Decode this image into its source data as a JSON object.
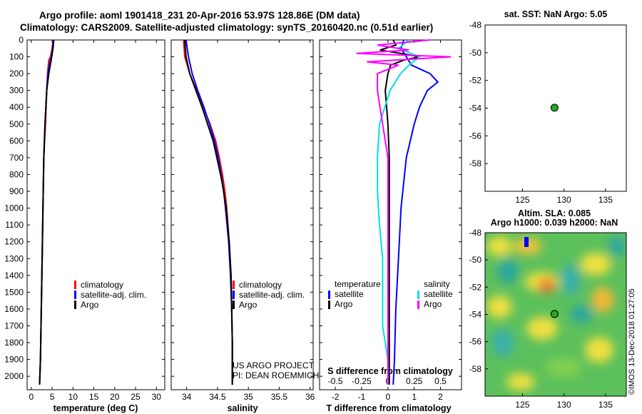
{
  "header": {
    "line1": "Argo profile: aoml 1901418_231 20-Apr-2016 53.97S 128.86E (DM data)",
    "line2": "Climatology: CARS2009. Satellite-adjusted climatology: synTS_20160420.nc (0.51d earlier)"
  },
  "colors": {
    "climatology": "#ff0000",
    "satellite": "#0000ff",
    "argo": "#000000",
    "sat_salinity": "#00e0e0",
    "argo_salinity": "#ff00ff",
    "marker": "#22aa22"
  },
  "credits": {
    "project": "US ARGO PROJECT",
    "pi": "PI: DEAN ROEMMICH",
    "imos": "©IMOS 13-Dec-2018 01:27:05"
  },
  "chart_data": [
    {
      "type": "line",
      "name": "temperature-profile",
      "xlabel": "temperature (deg C)",
      "ylabel": "",
      "xlim": [
        -1,
        32
      ],
      "ylim": [
        2080,
        0
      ],
      "xticks": [
        "0",
        "5",
        "10",
        "15",
        "20",
        "25",
        "30"
      ],
      "yticks": [
        "0",
        "100",
        "200",
        "300",
        "400",
        "500",
        "600",
        "700",
        "800",
        "900",
        "1000",
        "1100",
        "1200",
        "1300",
        "1400",
        "1500",
        "1600",
        "1700",
        "1800",
        "1900",
        "2000"
      ],
      "legend": [
        "climatology",
        "satellite-adj. clim.",
        "Argo"
      ],
      "series": [
        {
          "name": "climatology",
          "color": "#ff0000",
          "depth": [
            0,
            50,
            100,
            120,
            200,
            300,
            500,
            700,
            1000,
            1300,
            1600,
            1900,
            2050
          ],
          "values": [
            5.2,
            5.0,
            4.6,
            4.2,
            3.9,
            3.7,
            3.4,
            3.0,
            2.8,
            2.6,
            2.4,
            2.2,
            2.0
          ]
        },
        {
          "name": "satellite-adj. clim.",
          "color": "#0000ff",
          "depth": [
            0,
            50,
            100,
            150,
            200,
            300,
            500,
            700,
            1000,
            1300,
            1600,
            1900,
            2050
          ],
          "values": [
            5.3,
            5.1,
            4.8,
            4.3,
            4.0,
            3.7,
            3.3,
            3.0,
            2.8,
            2.6,
            2.4,
            2.2,
            2.0
          ]
        },
        {
          "name": "Argo",
          "color": "#000000",
          "depth": [
            0,
            50,
            100,
            200,
            300,
            500,
            700,
            1000,
            1300,
            1600,
            1900,
            2050
          ],
          "values": [
            5.4,
            5.2,
            4.9,
            4.2,
            3.7,
            3.3,
            3.0,
            2.8,
            2.6,
            2.4,
            2.2,
            2.0
          ]
        }
      ]
    },
    {
      "type": "line",
      "name": "salinity-profile",
      "xlabel": "salinity",
      "ylabel": "",
      "xlim": [
        33.75,
        36.05
      ],
      "ylim": [
        2080,
        0
      ],
      "xticks": [
        "34",
        "34.5",
        "35",
        "35.5",
        "36"
      ],
      "legend": [
        "climatology",
        "satellite-adj. clim.",
        "Argo"
      ],
      "series": [
        {
          "name": "climatology",
          "color": "#ff0000",
          "depth": [
            0,
            100,
            200,
            300,
            400,
            500,
            600,
            700,
            800,
            900,
            1000,
            1200,
            1400,
            1600,
            1800,
            2000,
            2050
          ],
          "values": [
            33.95,
            33.97,
            34.05,
            34.16,
            34.27,
            34.38,
            34.47,
            34.53,
            34.58,
            34.62,
            34.65,
            34.69,
            34.72,
            34.73,
            34.74,
            34.74,
            34.74
          ]
        },
        {
          "name": "satellite-adj. clim.",
          "color": "#0000ff",
          "depth": [
            0,
            50,
            100,
            150,
            200,
            300,
            400,
            500,
            600,
            700,
            800,
            900,
            1000,
            1200,
            1400,
            1600,
            1800,
            2000,
            2050
          ],
          "values": [
            33.99,
            34.01,
            34.03,
            34.06,
            34.09,
            34.18,
            34.28,
            34.37,
            34.45,
            34.51,
            34.56,
            34.6,
            34.63,
            34.68,
            34.71,
            34.73,
            34.74,
            34.74,
            34.74
          ]
        },
        {
          "name": "Argo",
          "color": "#000000",
          "depth": [
            0,
            100,
            150,
            200,
            300,
            400,
            500,
            600,
            700,
            800,
            900,
            1000,
            1200,
            1400,
            1600,
            1800,
            2000,
            2050
          ],
          "values": [
            33.97,
            33.99,
            34.02,
            34.05,
            34.15,
            34.25,
            34.34,
            34.43,
            34.49,
            34.55,
            34.6,
            34.64,
            34.69,
            34.72,
            34.73,
            34.74,
            34.74,
            34.74
          ]
        }
      ]
    },
    {
      "type": "line",
      "name": "difference-profile",
      "xlabel": "T difference from climatology",
      "xlabel_top": "S difference from climatology",
      "xlim": [
        -2.6,
        2.8
      ],
      "ylim": [
        2080,
        0
      ],
      "xticks": [
        "-2",
        "-1",
        "0",
        "1",
        "2"
      ],
      "xticks_s": [
        "-0.5",
        "-0.25",
        "0",
        "0.25",
        "0.5"
      ],
      "legend_temperature": {
        "title": "temperature",
        "items": [
          "satellite",
          "Argo"
        ]
      },
      "legend_salinity": {
        "title": "salinity",
        "items": [
          "satellite",
          "Argo"
        ]
      },
      "series": [
        {
          "name": "temperature satellite",
          "color": "#0000ff",
          "depth": [
            0,
            50,
            100,
            150,
            200,
            250,
            300,
            400,
            500,
            700,
            1000,
            1300,
            1600,
            1900,
            2050
          ],
          "values": [
            0.6,
            0.5,
            0.7,
            0.9,
            1.6,
            1.9,
            1.5,
            1.2,
            1.0,
            0.7,
            0.5,
            0.4,
            0.3,
            0.25,
            0.2
          ]
        },
        {
          "name": "temperature Argo",
          "color": "#000000",
          "depth": [
            0,
            30,
            60,
            80,
            100,
            120,
            150,
            200,
            300,
            400,
            500,
            700,
            1000,
            1300,
            1600,
            1900,
            2050
          ],
          "values": [
            0.2,
            0.3,
            -0.3,
            0.5,
            1.2,
            0.6,
            0.1,
            0.0,
            -0.1,
            -0.05,
            0.0,
            0.05,
            0.05,
            0.05,
            0.05,
            0.05,
            0.05
          ]
        },
        {
          "name": "salinity satellite",
          "color": "#00e0e0",
          "depth": [
            0,
            50,
            100,
            150,
            200,
            300,
            500,
            700,
            900,
            1100,
            1300,
            1500,
            1700,
            1900,
            2050
          ],
          "values": [
            0.2,
            0.1,
            0.3,
            0.2,
            0.12,
            0.02,
            -0.08,
            -0.1,
            -0.1,
            -0.08,
            -0.05,
            -0.05,
            -0.05,
            0.0,
            0.0
          ]
        },
        {
          "name": "salinity Argo",
          "color": "#ff00ff",
          "depth": [
            0,
            30,
            60,
            80,
            100,
            130,
            150,
            200,
            300,
            500,
            700,
            1000,
            1300,
            1600,
            1900,
            2050
          ],
          "values": [
            0.4,
            -0.1,
            0.2,
            -0.3,
            0.6,
            -0.2,
            0.1,
            -0.1,
            -0.1,
            -0.05,
            0.0,
            0.0,
            0.0,
            0.0,
            0.0,
            0.0
          ]
        }
      ]
    },
    {
      "type": "scatter",
      "name": "sst-map",
      "title": "sat. SST: NaN Argo: 5.05",
      "xlim": [
        120.5,
        137.5
      ],
      "ylim": [
        -60,
        -48
      ],
      "xticks": [
        "125",
        "130",
        "135"
      ],
      "yticks": [
        "-48",
        "-50",
        "-52",
        "-54",
        "-56",
        "-58"
      ],
      "points": [
        {
          "x": 128.86,
          "y": -53.97
        }
      ]
    },
    {
      "type": "heatmap",
      "name": "sla-map",
      "title1": "Altim. SLA: 0.085",
      "title2": "Argo h1000: 0.039 h2000: NaN",
      "xlim": [
        120.5,
        137.5
      ],
      "ylim": [
        -60,
        -48
      ],
      "xticks": [
        "125",
        "130",
        "135"
      ],
      "yticks": [
        "-48",
        "-50",
        "-52",
        "-54",
        "-56",
        "-58"
      ],
      "points": [
        {
          "x": 128.86,
          "y": -53.97
        }
      ]
    }
  ]
}
